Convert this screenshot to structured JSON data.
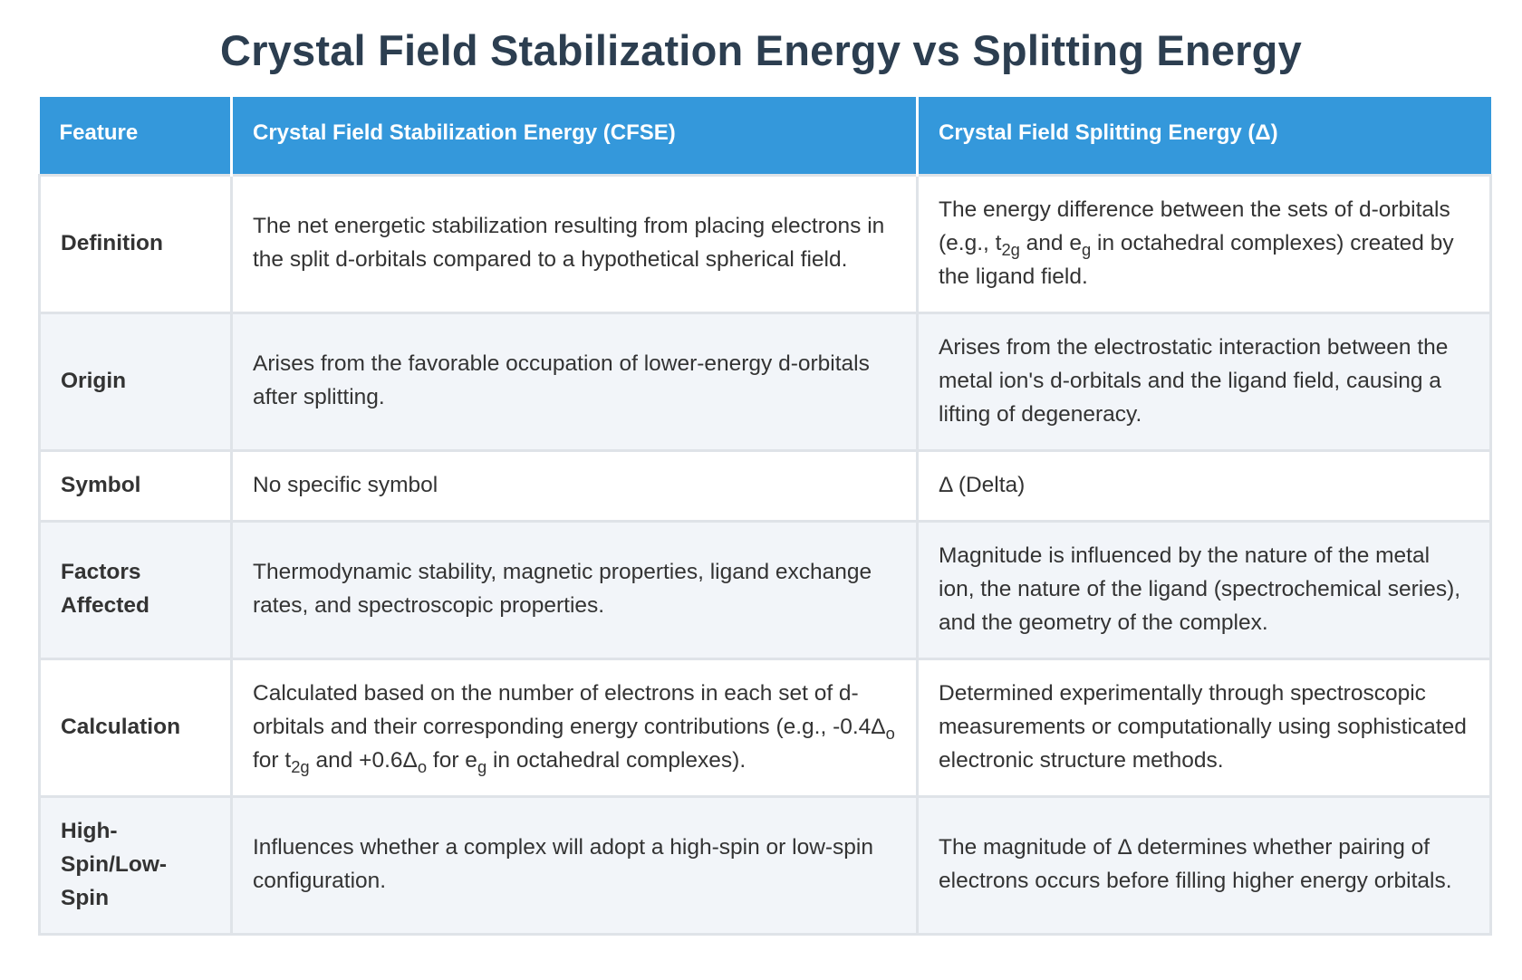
{
  "title": "Crystal Field Stabilization Energy vs Splitting Energy",
  "table": {
    "headers": [
      "Feature",
      "Crystal Field Stabilization Energy (CFSE)",
      "Crystal Field Splitting Energy (Δ)"
    ],
    "rows": [
      {
        "feature": "Definition",
        "cfse": "The net energetic stabilization resulting from placing electrons in the split d-orbitals compared to a hypothetical spherical field.",
        "splitting": {
          "before_t": "The energy difference between the sets of d-orbitals (e.g., t",
          "t_sub": "2g",
          "between": " and e",
          "e_sub": "g",
          "after": " in octahedral complexes) created by the ligand field."
        }
      },
      {
        "feature": "Origin",
        "cfse": "Arises from the favorable occupation of lower-energy d-orbitals after splitting.",
        "splitting": "Arises from the electrostatic interaction between the metal ion's d-orbitals and the ligand field, causing a lifting of degeneracy."
      },
      {
        "feature": "Symbol",
        "cfse": "No specific symbol",
        "splitting": "Δ (Delta)"
      },
      {
        "feature": "Factors Affected",
        "cfse": "Thermodynamic stability, magnetic properties, ligand exchange rates, and spectroscopic properties.",
        "splitting": "Magnitude is influenced by the nature of the metal ion, the nature of the ligand (spectrochemical series), and the geometry of the complex."
      },
      {
        "feature": "Calculation",
        "cfse": {
          "p1": "Calculated based on the number of electrons in each set of d-orbitals and their corresponding energy contributions (e.g., -0.4Δ",
          "s1": "o",
          "p2": " for t",
          "s2": "2g",
          "p3": " and +0.6Δ",
          "s3": "o",
          "p4": " for e",
          "s4": "g",
          "p5": " in octahedral complexes)."
        },
        "splitting": "Determined experimentally through spectroscopic measurements or computationally using sophisticated electronic structure methods."
      },
      {
        "feature": "High-Spin/Low-Spin",
        "cfse": "Influences whether a complex will adopt a high-spin or low-spin configuration.",
        "splitting": "The magnitude of Δ determines whether pairing of electrons occurs before filling higher energy orbitals."
      }
    ]
  },
  "colors": {
    "header_bg": "#3498db",
    "title": "#2c3e50",
    "alt_row_bg": "#f2f5f9",
    "border": "#dfe3e8"
  }
}
